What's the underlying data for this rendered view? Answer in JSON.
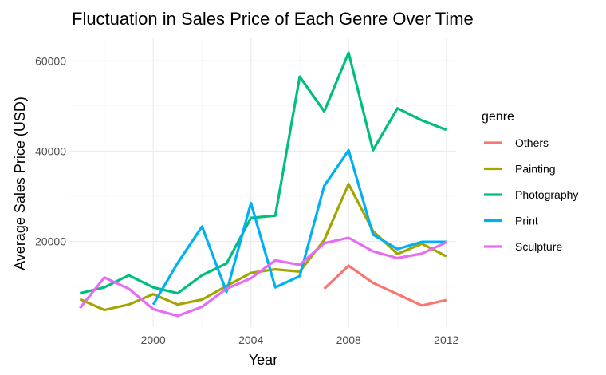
{
  "chart_data": {
    "type": "line",
    "title": "Fluctuation in Sales Price of Each Genre Over Time",
    "xlabel": "Year",
    "ylabel": "Average Sales Price (USD)",
    "xlim": [
      1996.6,
      2012.4
    ],
    "ylim": [
      1000,
      65000
    ],
    "x_ticks": [
      2000,
      2004,
      2008,
      2012
    ],
    "y_ticks": [
      20000,
      40000,
      60000
    ],
    "x_tick_labels": [
      "2000",
      "2004",
      "2008",
      "2012"
    ],
    "y_tick_labels": [
      "20000",
      "40000",
      "60000"
    ],
    "grid": true,
    "legend": {
      "title": "genre",
      "position": "right"
    },
    "series": [
      {
        "name": "Others",
        "color": "#F8766D",
        "x": [
          2007,
          2008,
          2009,
          2010,
          2011,
          2012
        ],
        "y": [
          9500,
          14600,
          10800,
          8300,
          5800,
          7000
        ]
      },
      {
        "name": "Painting",
        "color": "#A3A500",
        "x": [
          1997,
          1998,
          1999,
          2000,
          2001,
          2002,
          2003,
          2004,
          2005,
          2006,
          2007,
          2008,
          2009,
          2010,
          2011,
          2012
        ],
        "y": [
          7200,
          4800,
          6000,
          8300,
          6000,
          7100,
          10100,
          13000,
          13800,
          13300,
          20300,
          32700,
          22300,
          17200,
          19500,
          16700
        ]
      },
      {
        "name": "Photography",
        "color": "#00BF7D",
        "x": [
          1997,
          1998,
          1999,
          2000,
          2001,
          2002,
          2003,
          2004,
          2005,
          2006,
          2007,
          2008,
          2009,
          2010,
          2011,
          2012
        ],
        "y": [
          8500,
          9800,
          12500,
          9800,
          8500,
          12500,
          15100,
          25200,
          25700,
          56500,
          48800,
          61800,
          40200,
          49500,
          46800,
          44700
        ]
      },
      {
        "name": "Print",
        "color": "#00B0F6",
        "x": [
          2000,
          2001,
          2002,
          2003,
          2004,
          2005,
          2006,
          2007,
          2008,
          2009,
          2010,
          2011,
          2012
        ],
        "y": [
          6000,
          15200,
          23300,
          8800,
          28500,
          9800,
          12300,
          32300,
          40200,
          21500,
          18300,
          19900,
          19900
        ]
      },
      {
        "name": "Sculpture",
        "color": "#E76BF3",
        "x": [
          1997,
          1998,
          1999,
          2000,
          2001,
          2002,
          2003,
          2004,
          2005,
          2006,
          2007,
          2008,
          2009,
          2010,
          2011,
          2012
        ],
        "y": [
          5200,
          12000,
          9500,
          5000,
          3500,
          5500,
          9500,
          11800,
          15800,
          14800,
          19600,
          20800,
          17800,
          16300,
          17300,
          19800
        ]
      }
    ]
  }
}
